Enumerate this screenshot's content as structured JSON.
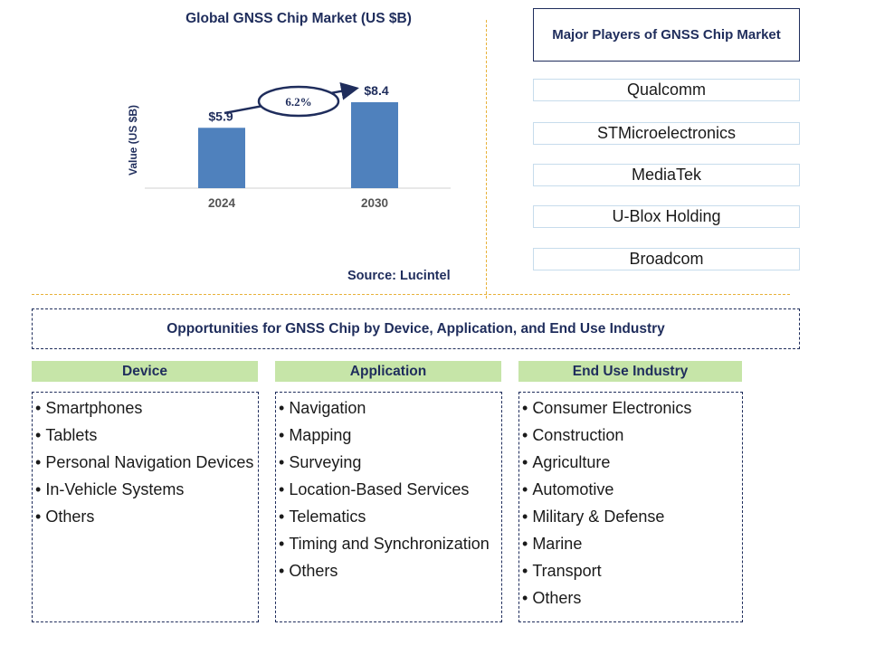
{
  "chart_data": {
    "type": "bar",
    "title": "Global GNSS Chip Market (US $B)",
    "ylabel": "Value (US $B)",
    "xlabel": "",
    "categories": [
      "2024",
      "2030"
    ],
    "values": [
      5.9,
      8.4
    ],
    "data_labels": [
      "$5.9",
      "$8.4"
    ],
    "ylim": [
      0,
      8.4
    ],
    "growth_label": "6.2%",
    "source": "Source: Lucintel",
    "bar_color": "#4f81bd"
  },
  "players": {
    "title": "Major Players of GNSS Chip Market",
    "items": [
      "Qualcomm",
      "STMicroelectronics",
      "MediaTek",
      "U-Blox Holding",
      "Broadcom"
    ]
  },
  "opportunities": {
    "title": "Opportunities for GNSS Chip by Device, Application, and End Use Industry",
    "columns": [
      {
        "header": "Device",
        "items": [
          "Smartphones",
          "Tablets",
          "Personal Navigation Devices",
          "In-Vehicle Systems",
          "Others"
        ]
      },
      {
        "header": "Application",
        "items": [
          "Navigation",
          "Mapping",
          "Surveying",
          "Location-Based Services",
          "Telematics",
          "Timing and Synchronization",
          "Others"
        ]
      },
      {
        "header": "End Use Industry",
        "items": [
          "Consumer Electronics",
          "Construction",
          "Agriculture",
          "Automotive",
          "Military & Defense",
          "Marine",
          "Transport",
          "Others"
        ]
      }
    ]
  }
}
